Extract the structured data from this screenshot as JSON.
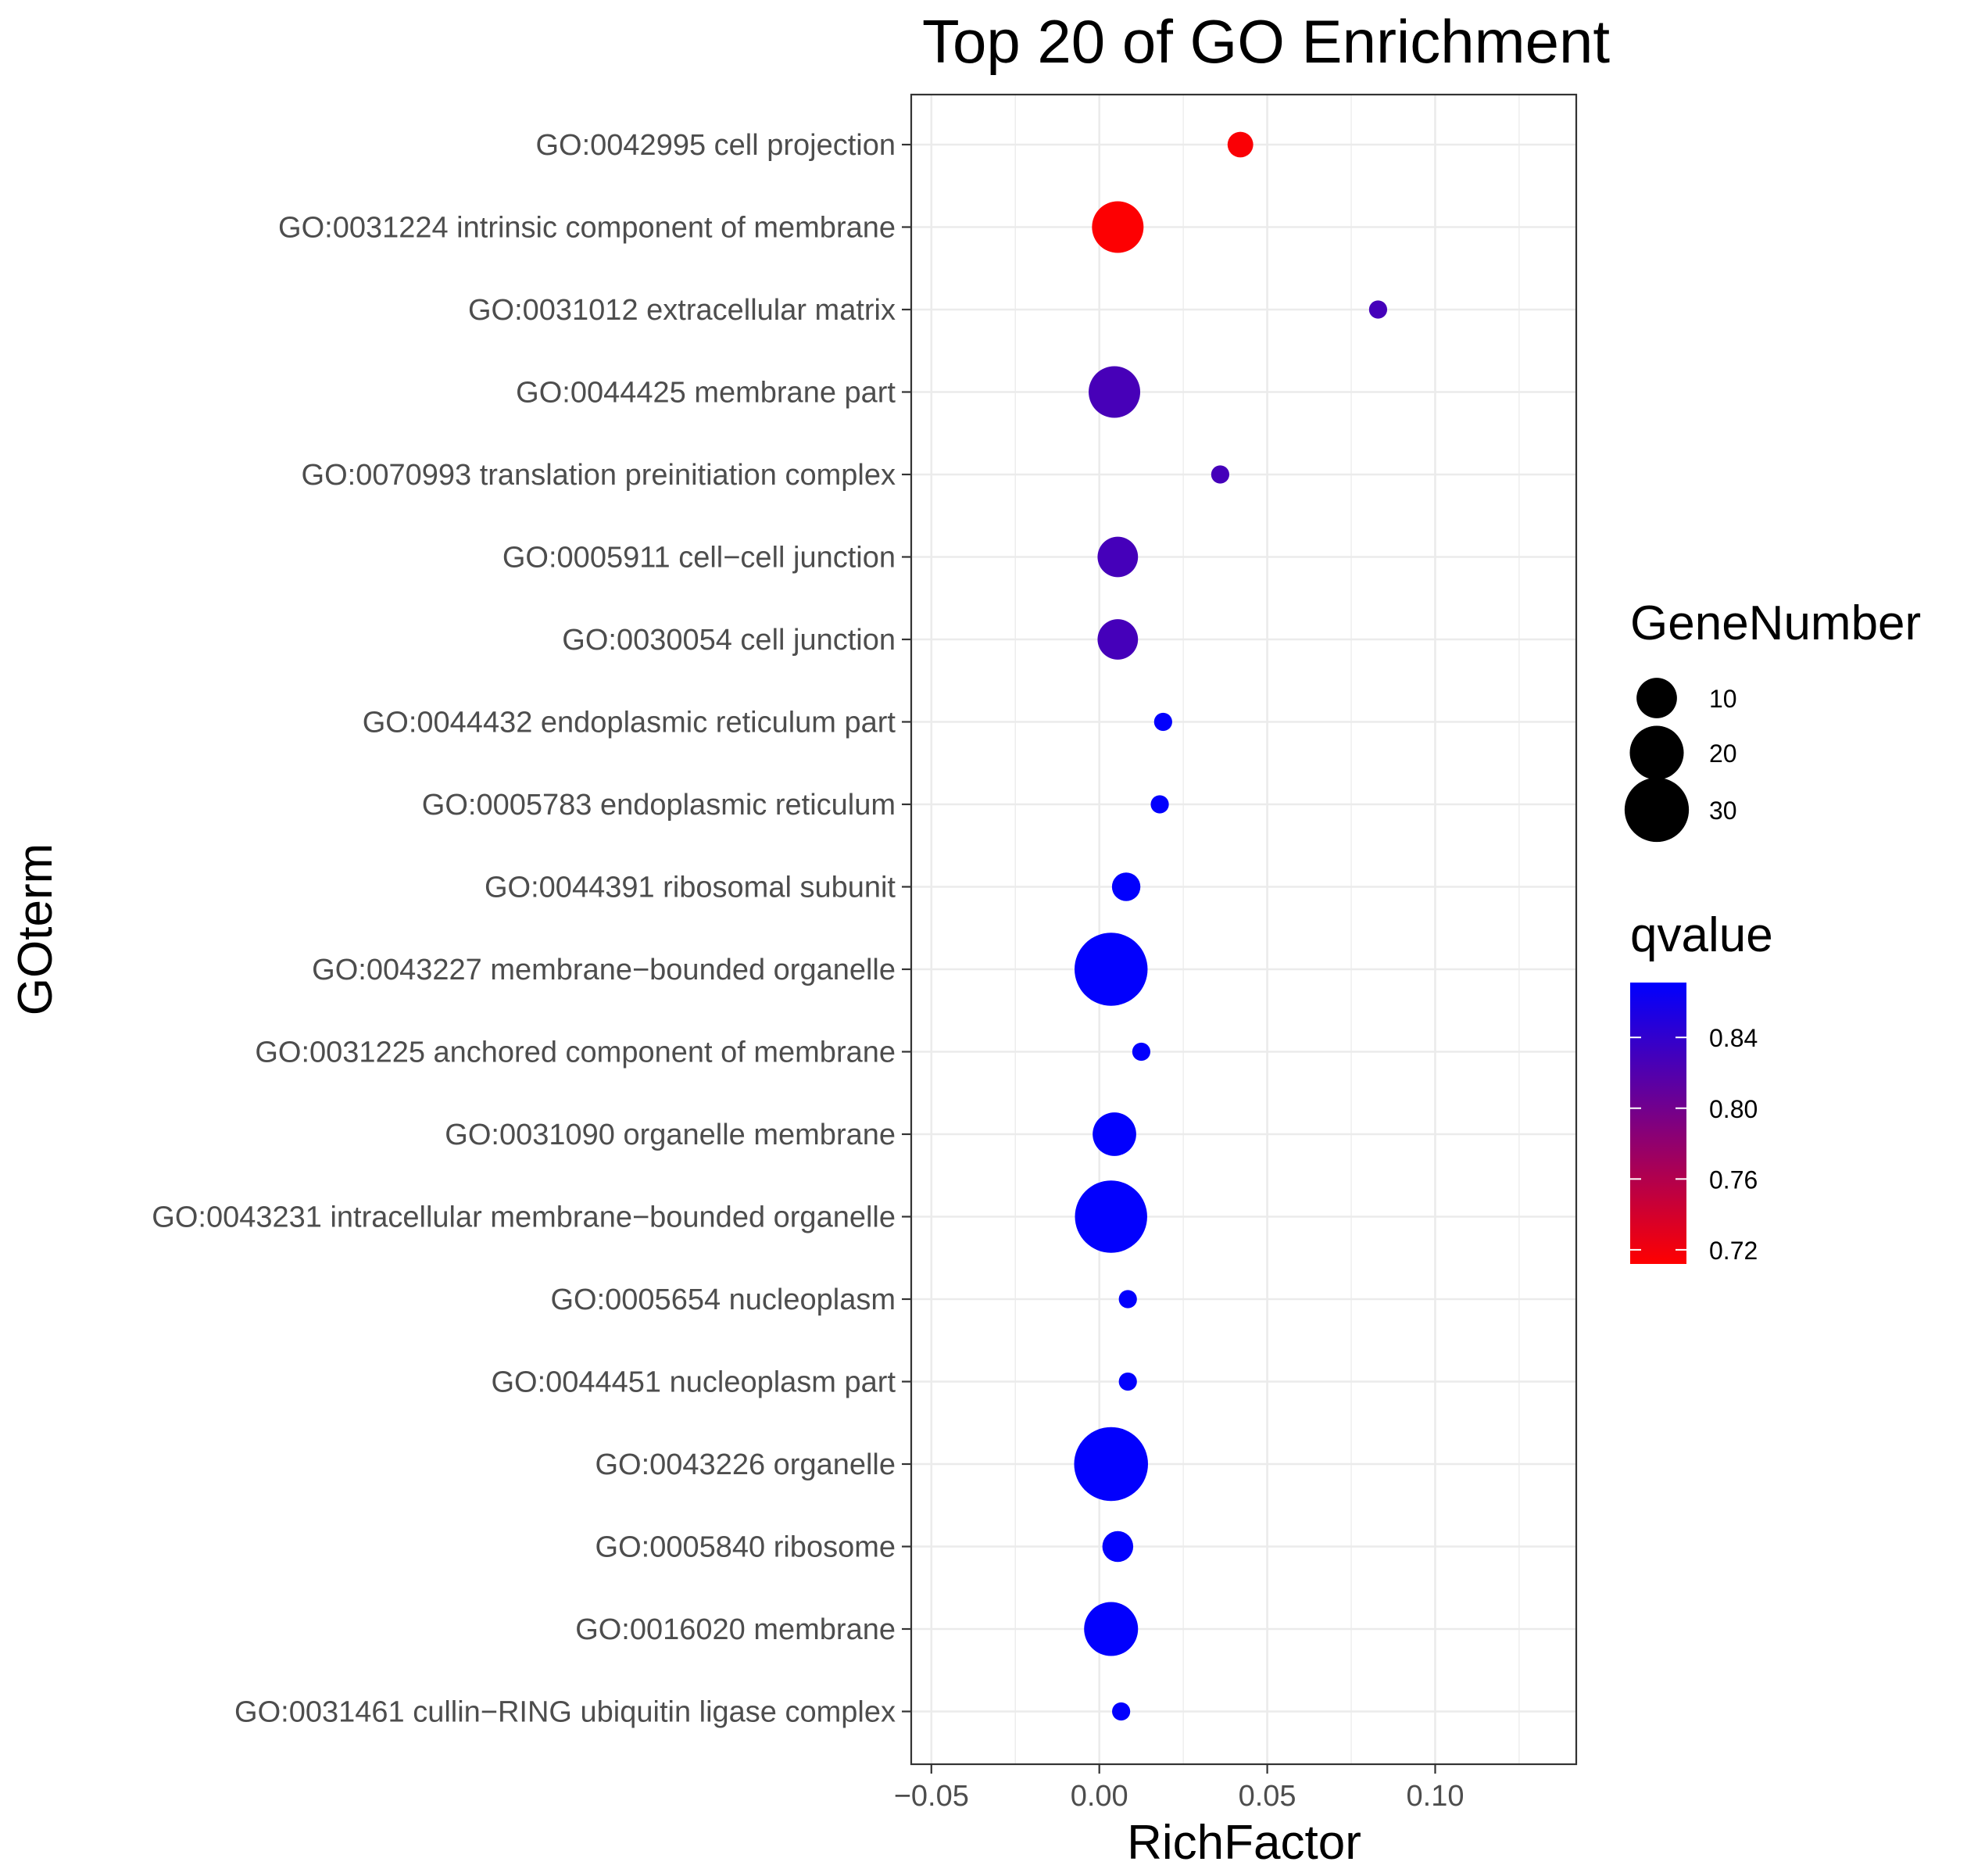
{
  "chart_data": {
    "type": "scatter",
    "title": "Top 20 of GO Enrichment",
    "xlabel": "RichFactor",
    "ylabel": "GOterm",
    "xlim": [
      -0.056,
      0.142
    ],
    "xticks": [
      -0.05,
      0.0,
      0.05,
      0.1
    ],
    "xtick_labels": [
      "−0.05",
      "0.00",
      "0.05",
      "0.10"
    ],
    "grid": true,
    "points": [
      {
        "term": "GO:0042995 cell projection",
        "richfactor": 0.042,
        "gene_number": 3,
        "qvalue": 0.715
      },
      {
        "term": "GO:0031224 intrinsic component of membrane",
        "richfactor": 0.0055,
        "gene_number": 18,
        "qvalue": 0.713
      },
      {
        "term": "GO:0031012 extracellular matrix",
        "richfactor": 0.083,
        "gene_number": 1,
        "qvalue": 0.828
      },
      {
        "term": "GO:0044425 membrane part",
        "richfactor": 0.0045,
        "gene_number": 18,
        "qvalue": 0.827
      },
      {
        "term": "GO:0070993 translation preinitiation complex",
        "richfactor": 0.036,
        "gene_number": 1,
        "qvalue": 0.828
      },
      {
        "term": "GO:0005911 cell−cell junction",
        "richfactor": 0.0055,
        "gene_number": 10,
        "qvalue": 0.828
      },
      {
        "term": "GO:0030054 cell junction",
        "richfactor": 0.0055,
        "gene_number": 10,
        "qvalue": 0.828
      },
      {
        "term": "GO:0044432 endoplasmic reticulum part",
        "richfactor": 0.019,
        "gene_number": 1,
        "qvalue": 0.87
      },
      {
        "term": "GO:0005783 endoplasmic reticulum",
        "richfactor": 0.018,
        "gene_number": 1,
        "qvalue": 0.87
      },
      {
        "term": "GO:0044391 ribosomal subunit",
        "richfactor": 0.008,
        "gene_number": 4,
        "qvalue": 0.87
      },
      {
        "term": "GO:0043227 membrane−bounded organelle",
        "richfactor": 0.0035,
        "gene_number": 40,
        "qvalue": 0.87
      },
      {
        "term": "GO:0031225 anchored component of membrane",
        "richfactor": 0.0125,
        "gene_number": 1,
        "qvalue": 0.87
      },
      {
        "term": "GO:0031090 organelle membrane",
        "richfactor": 0.0045,
        "gene_number": 12,
        "qvalue": 0.87
      },
      {
        "term": "GO:0043231 intracellular membrane−bounded organelle",
        "richfactor": 0.0035,
        "gene_number": 39,
        "qvalue": 0.87
      },
      {
        "term": "GO:0005654 nucleoplasm",
        "richfactor": 0.0085,
        "gene_number": 1,
        "qvalue": 0.87
      },
      {
        "term": "GO:0044451 nucleoplasm part",
        "richfactor": 0.0085,
        "gene_number": 1,
        "qvalue": 0.87
      },
      {
        "term": "GO:0043226 organelle",
        "richfactor": 0.0035,
        "gene_number": 41,
        "qvalue": 0.87
      },
      {
        "term": "GO:0005840 ribosome",
        "richfactor": 0.0055,
        "gene_number": 5,
        "qvalue": 0.87
      },
      {
        "term": "GO:0016020 membrane",
        "richfactor": 0.0035,
        "gene_number": 20,
        "qvalue": 0.87
      },
      {
        "term": "GO:0031461 cullin−RING ubiquitin ligase complex",
        "richfactor": 0.0065,
        "gene_number": 1,
        "qvalue": 0.87
      }
    ],
    "legend_size": {
      "title": "GeneNumber",
      "values": [
        10,
        20,
        30
      ],
      "labels": [
        "10",
        "20",
        "30"
      ]
    },
    "legend_color": {
      "title": "qvalue",
      "range": [
        0.712,
        0.871
      ],
      "low_color": "#ff0000",
      "high_color": "#0000ff",
      "ticks": [
        0.72,
        0.76,
        0.8,
        0.84
      ],
      "tick_labels": [
        "0.72",
        "0.76",
        "0.80",
        "0.84"
      ]
    },
    "legend_placement": "right"
  }
}
